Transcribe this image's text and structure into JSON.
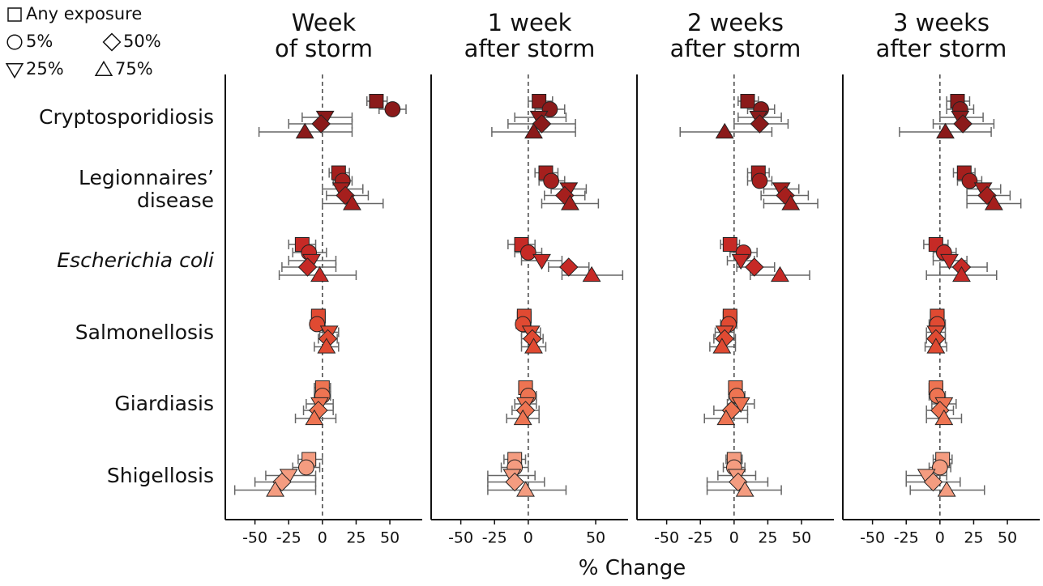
{
  "x_label": "% Change",
  "categories": [
    "Cryptosporidiosis",
    "Legionnaires’\ndisease",
    "Escherichia coli",
    "Salmonellosis",
    "Giardiasis",
    "Shigellosis"
  ],
  "category_styles": [
    "normal",
    "normal",
    "italic",
    "normal",
    "normal",
    "normal"
  ],
  "category_colors": [
    "#8b1a1a",
    "#a51f1d",
    "#c62a26",
    "#e04a32",
    "#ee7452",
    "#f49c80"
  ],
  "exposures": [
    {
      "name": "Any exposure",
      "marker": "square"
    },
    {
      "name": "5%",
      "marker": "circle"
    },
    {
      "name": "25%",
      "marker": "triangle-down"
    },
    {
      "name": "50%",
      "marker": "diamond"
    },
    {
      "name": "75%",
      "marker": "triangle-up"
    }
  ],
  "chart_data": [
    {
      "type": "forest",
      "title": "Week\nof storm",
      "xlim": [
        -72,
        74
      ],
      "xticks": [
        -50,
        -25,
        0,
        25,
        50
      ],
      "ref_line": 0,
      "series": [
        {
          "values": [
            40,
            12,
            -15,
            -3,
            0,
            -10
          ],
          "lower": [
            33,
            5,
            -25,
            -8,
            -6,
            -18
          ],
          "upper": [
            48,
            20,
            -5,
            2,
            6,
            0
          ]
        },
        {
          "values": [
            52,
            15,
            -10,
            -4,
            0,
            -12
          ],
          "lower": [
            42,
            8,
            -22,
            -9,
            -6,
            -22
          ],
          "upper": [
            62,
            22,
            3,
            2,
            6,
            -2
          ]
        },
        {
          "values": [
            2,
            14,
            -8,
            5,
            -2,
            -25
          ],
          "lower": [
            -15,
            0,
            -25,
            -2,
            -12,
            -42
          ],
          "upper": [
            22,
            30,
            10,
            12,
            8,
            -5
          ]
        },
        {
          "values": [
            -1,
            17,
            -11,
            4,
            -3,
            -30
          ],
          "lower": [
            -25,
            3,
            -30,
            -3,
            -14,
            -50
          ],
          "upper": [
            22,
            34,
            10,
            11,
            8,
            -5
          ]
        },
        {
          "values": [
            -13,
            22,
            -2,
            3,
            -6,
            -35
          ],
          "lower": [
            -47,
            0,
            -32,
            -6,
            -20,
            -65
          ],
          "upper": [
            22,
            45,
            25,
            12,
            10,
            -5
          ]
        }
      ]
    },
    {
      "type": "forest",
      "title": "1 week\nafter storm",
      "xlim": [
        -72,
        74
      ],
      "xticks": [
        -50,
        -25,
        0,
        50
      ],
      "ref_line": 0,
      "series": [
        {
          "values": [
            8,
            13,
            -5,
            -3,
            -2,
            -10
          ],
          "lower": [
            0,
            5,
            -15,
            -8,
            -7,
            -18
          ],
          "upper": [
            18,
            22,
            5,
            2,
            3,
            -2
          ]
        },
        {
          "values": [
            16,
            17,
            0,
            -4,
            0,
            -10
          ],
          "lower": [
            5,
            8,
            -10,
            -9,
            -5,
            -20
          ],
          "upper": [
            27,
            27,
            10,
            2,
            6,
            0
          ]
        },
        {
          "values": [
            8,
            30,
            10,
            2,
            -2,
            -12
          ],
          "lower": [
            -10,
            17,
            -5,
            -5,
            -10,
            -30
          ],
          "upper": [
            28,
            43,
            25,
            9,
            6,
            5
          ]
        },
        {
          "values": [
            10,
            27,
            30,
            3,
            -2,
            -10
          ],
          "lower": [
            -15,
            12,
            15,
            -5,
            -12,
            -30
          ],
          "upper": [
            35,
            42,
            45,
            11,
            8,
            12
          ]
        },
        {
          "values": [
            4,
            31,
            47,
            4,
            -4,
            -2
          ],
          "lower": [
            -27,
            10,
            25,
            -5,
            -16,
            -30
          ],
          "upper": [
            35,
            52,
            70,
            13,
            8,
            28
          ]
        }
      ]
    },
    {
      "type": "forest",
      "title": "2 weeks\nafter storm",
      "xlim": [
        -72,
        74
      ],
      "xticks": [
        -50,
        -25,
        0,
        25,
        50
      ],
      "ref_line": 0,
      "series": [
        {
          "values": [
            10,
            18,
            -3,
            -3,
            1,
            0
          ],
          "lower": [
            3,
            10,
            -10,
            -8,
            -4,
            -6
          ],
          "upper": [
            18,
            26,
            4,
            2,
            6,
            6
          ]
        },
        {
          "values": [
            20,
            19,
            7,
            -4,
            2,
            0
          ],
          "lower": [
            10,
            10,
            -3,
            -10,
            -4,
            -8
          ],
          "upper": [
            30,
            28,
            17,
            2,
            8,
            8
          ]
        },
        {
          "values": [
            18,
            35,
            5,
            -7,
            5,
            2
          ],
          "lower": [
            3,
            22,
            -5,
            -14,
            -5,
            -12
          ],
          "upper": [
            35,
            48,
            15,
            0,
            15,
            16
          ]
        },
        {
          "values": [
            19,
            38,
            15,
            -7,
            -2,
            3
          ],
          "lower": [
            0,
            20,
            2,
            -15,
            -15,
            -20
          ],
          "upper": [
            40,
            55,
            30,
            1,
            10,
            25
          ]
        },
        {
          "values": [
            -7,
            42,
            34,
            -9,
            -6,
            8
          ],
          "lower": [
            -40,
            22,
            12,
            -18,
            -22,
            -20
          ],
          "upper": [
            28,
            62,
            56,
            1,
            10,
            35
          ]
        }
      ]
    },
    {
      "type": "forest",
      "title": "3 weeks\nafter storm",
      "xlim": [
        -72,
        74
      ],
      "xticks": [
        -50,
        -25,
        0,
        25,
        50
      ],
      "ref_line": 0,
      "series": [
        {
          "values": [
            13,
            18,
            -3,
            -2,
            -3,
            2
          ],
          "lower": [
            5,
            10,
            -12,
            -7,
            -8,
            -5
          ],
          "upper": [
            22,
            26,
            6,
            3,
            2,
            9
          ]
        },
        {
          "values": [
            15,
            22,
            3,
            -2,
            -2,
            0
          ],
          "lower": [
            5,
            13,
            -5,
            -8,
            -8,
            -8
          ],
          "upper": [
            25,
            31,
            12,
            4,
            4,
            8
          ]
        },
        {
          "values": [
            15,
            32,
            7,
            -3,
            3,
            -10
          ],
          "lower": [
            0,
            20,
            -5,
            -10,
            -6,
            -25
          ],
          "upper": [
            32,
            45,
            20,
            4,
            12,
            5
          ]
        },
        {
          "values": [
            17,
            35,
            16,
            -3,
            0,
            -5
          ],
          "lower": [
            -5,
            20,
            0,
            -10,
            -10,
            -25
          ],
          "upper": [
            40,
            52,
            35,
            4,
            10,
            15
          ]
        },
        {
          "values": [
            4,
            40,
            16,
            -3,
            3,
            5
          ],
          "lower": [
            -30,
            20,
            -10,
            -11,
            -10,
            -22
          ],
          "upper": [
            38,
            60,
            42,
            5,
            16,
            33
          ]
        }
      ]
    }
  ]
}
